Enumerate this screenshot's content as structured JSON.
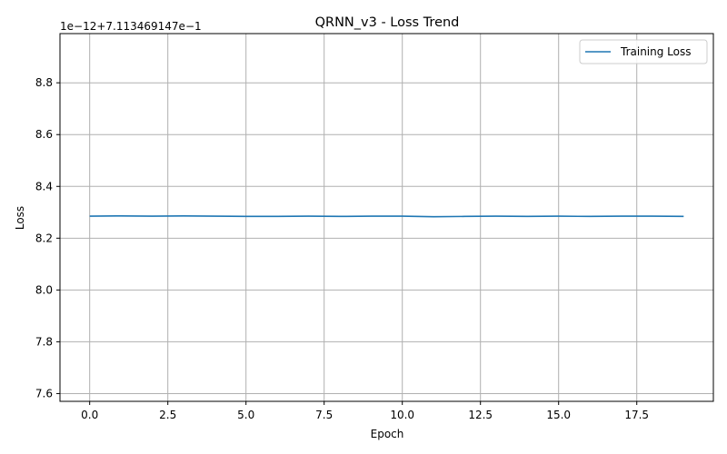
{
  "chart_data": {
    "type": "line",
    "title": "QRNN_v3 - Loss Trend",
    "xlabel": "Epoch",
    "ylabel": "Loss",
    "offset_text": "1e−12+7.113469147e−1",
    "xlim": [
      -0.95,
      19.95
    ],
    "ylim": [
      7.57,
      8.99
    ],
    "x_ticks": [
      0,
      2.5,
      5,
      7.5,
      10,
      12.5,
      15,
      17.5
    ],
    "x_tick_labels": [
      "0.0",
      "2.5",
      "5.0",
      "7.5",
      "10.0",
      "12.5",
      "15.0",
      "17.5"
    ],
    "y_ticks": [
      7.6,
      7.8,
      8.0,
      8.2,
      8.4,
      8.6,
      8.8
    ],
    "y_tick_labels": [
      "7.6",
      "7.8",
      "8.0",
      "8.2",
      "8.4",
      "8.6",
      "8.8"
    ],
    "grid": true,
    "legend": "top-right",
    "series": [
      {
        "name": "Training Loss",
        "color": "#1f77b4",
        "x": [
          0,
          1,
          2,
          3,
          4,
          5,
          6,
          7,
          8,
          9,
          10,
          11,
          12,
          13,
          14,
          15,
          16,
          17,
          18,
          19
        ],
        "y": [
          8.285,
          8.286,
          8.285,
          8.286,
          8.285,
          8.284,
          8.284,
          8.285,
          8.284,
          8.285,
          8.285,
          8.283,
          8.284,
          8.285,
          8.284,
          8.285,
          8.284,
          8.285,
          8.285,
          8.284
        ]
      }
    ]
  }
}
